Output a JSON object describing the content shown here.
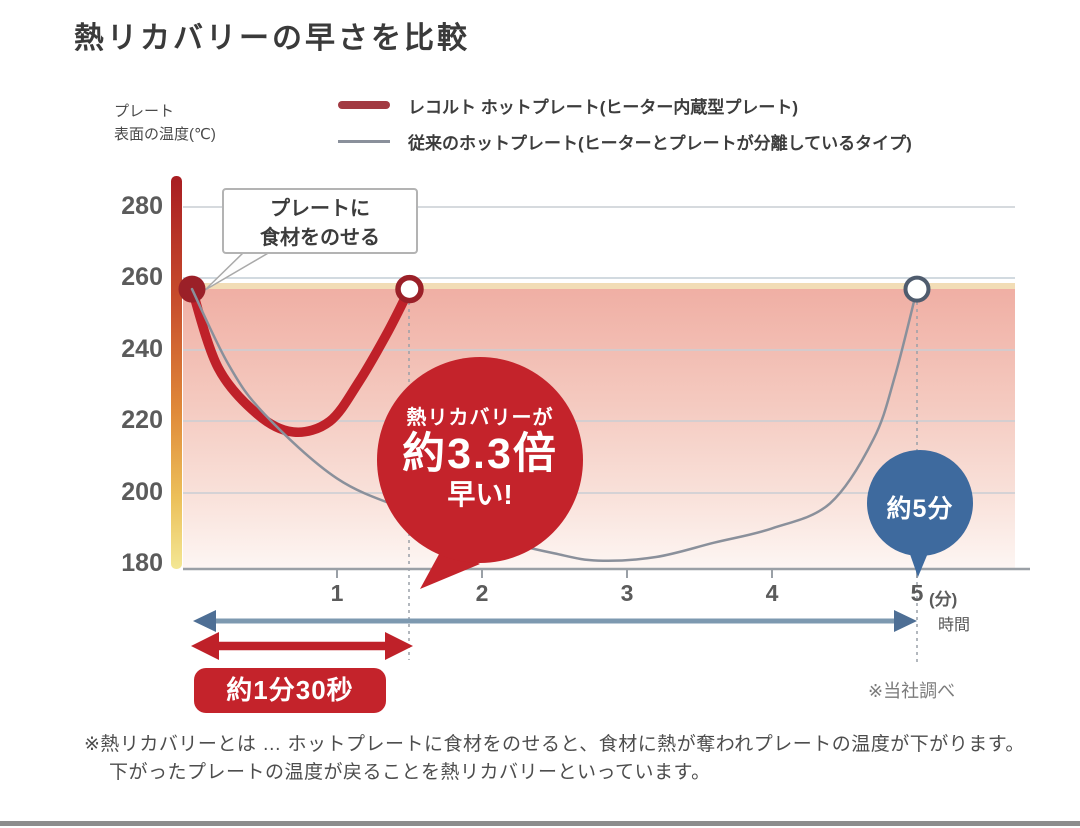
{
  "page": {
    "title": "熱リカバリーの早さを比較",
    "source_note": "※当社調べ",
    "footnote_line1": "※熱リカバリーとは … ホットプレートに食材をのせると、食材に熱が奪われプレートの温度が下がります。",
    "footnote_line2": "下がったプレートの温度が戻ることを熱リカバリーといっています。"
  },
  "legend": {
    "items": [
      {
        "label": "レコルト ホットプレート(ヒーター内蔵型プレート)",
        "color": "#a23a42",
        "style": "thick-line"
      },
      {
        "label": "従来のホットプレート(ヒーターとプレートが分離しているタイプ)",
        "color": "#8a909b",
        "style": "thin-line"
      }
    ]
  },
  "axes": {
    "y_title_line1": "プレート",
    "y_title_line2": "表面の温度(℃)",
    "y_ticks": [
      "280",
      "260",
      "240",
      "220",
      "200",
      "180"
    ],
    "x_ticks": [
      "1",
      "2",
      "3",
      "4",
      "5"
    ],
    "x_unit": "(分)",
    "x_title": "時間"
  },
  "annotations": {
    "callout": {
      "line1": "プレートに",
      "line2": "食材をのせる"
    },
    "red_bubble": {
      "line1": "熱リカバリーが",
      "line2": "約3.3倍",
      "line3": "早い!"
    },
    "blue_bubble": {
      "label": "約5分"
    },
    "red_arrow_label": "約1分30秒"
  },
  "colors": {
    "accent_red": "#bf2129",
    "red_bubble": "#c4232b",
    "blue_bubble": "#3e6a9e",
    "arrow_blue_line": "#7d99b0",
    "arrow_blue_head": "#4e6f95",
    "gray_line": "#8a909b",
    "grid": "#c9ced4",
    "dotted_guide": "#9aa0a8"
  },
  "chart_data": {
    "type": "line",
    "title": "熱リカバリーの早さを比較",
    "xlabel": "時間(分)",
    "ylabel": "プレート表面の温度(℃)",
    "xlim": [
      0,
      5
    ],
    "ylim": [
      180,
      280
    ],
    "yticks": [
      280,
      260,
      240,
      220,
      200,
      180
    ],
    "xticks": [
      1,
      2,
      3,
      4,
      5
    ],
    "grid": true,
    "legend_position": "top",
    "series": [
      {
        "name": "レコルト ホットプレート(ヒーター内蔵型プレート)",
        "color": "#bf2129",
        "line_width": 9.5,
        "marker_start": "filled",
        "marker_end": "open",
        "marker_color": "#9b2028",
        "marker_stroke_width": 5.5,
        "x": [
          0,
          0.18,
          0.45,
          0.7,
          0.95,
          1.15,
          1.35,
          1.5
        ],
        "y": [
          257,
          235,
          222,
          217,
          220,
          231,
          245,
          257
        ],
        "recovery_note": "熱リカバリーが約3.3倍早い! (約1分30秒)"
      },
      {
        "name": "従来のホットプレート(ヒーターとプレートが分離しているタイプ)",
        "color": "#8a909b",
        "line_width": 2.5,
        "marker_start": null,
        "marker_end": "open",
        "marker_color": "#4f5c6e",
        "marker_stroke_width": 4,
        "x": [
          0,
          0.25,
          0.5,
          1.0,
          1.5,
          2.0,
          2.5,
          2.8,
          3.2,
          3.6,
          4.0,
          4.4,
          4.7,
          4.85,
          5.0
        ],
        "y": [
          257,
          236,
          222,
          204,
          195,
          188,
          183,
          181,
          182,
          186,
          190,
          197,
          215,
          233,
          257
        ],
        "recovery_note": "約5分"
      }
    ]
  }
}
